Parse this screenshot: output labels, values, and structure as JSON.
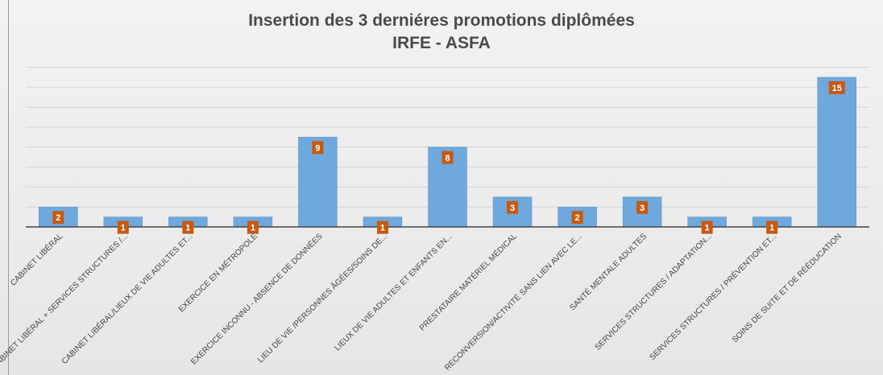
{
  "chart_data": {
    "type": "bar",
    "title": "Insertion des 3 derniéres promotions diplômées",
    "subtitle": "IRFE - ASFA",
    "xlabel": "",
    "ylabel": "",
    "ylim": [
      0,
      16
    ],
    "grid": true,
    "categories": [
      "CABINET LIBÉRAL",
      "CABINET LIBÉRAL + SERVICES STRUCTURES /...",
      "CABINET LIBÉRAL/LIEUX DE VIE ADULTES ET...",
      "EXERCICE EN MÉTROPOLE",
      "EXERCICE INCONNU - ABSENCE DE DONNÉES",
      "LIEU DE VIE /PERSONNES ÂGÉES/SOINS DE...",
      "LIEUX DE VIE ADULTES ET ENFANTS EN...",
      "PRESTATAIRE MATÉRIEL MÉDICAL",
      "RECONVERSION/ACTIVITÉ SANS LIEN AVEC LE...",
      "SANTÉ MENTALE ADULTES",
      "SERVICES STRUCTURES / ADAPTATION...",
      "SERVICES STRUCTURES / PRÉVENTION ET...",
      "SOINS DE SUITE ET DE RÉÉDUCATION"
    ],
    "values": [
      2,
      1,
      1,
      1,
      9,
      1,
      8,
      3,
      2,
      3,
      1,
      1,
      15
    ],
    "bar_color": "#6fa8dc",
    "label_color": "#c55a11"
  }
}
